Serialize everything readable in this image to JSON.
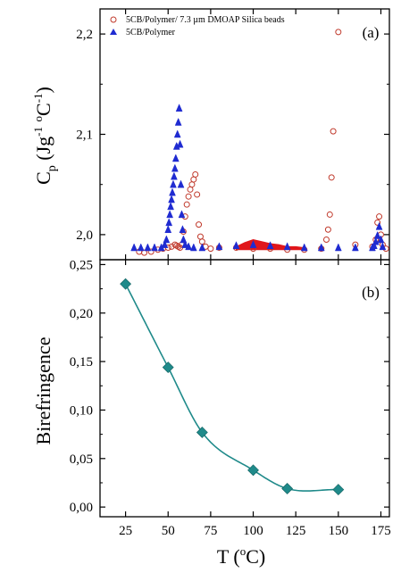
{
  "chart_data": [
    {
      "type": "scatter",
      "panel_label": "(a)",
      "ylabel": {
        "base": "C",
        "sub": "p",
        "unit_open": " (Jg",
        "sup1": "-1",
        "unit_mid": " ",
        "sup2": "o",
        "unit_close": "C",
        "sup3": "-1",
        "end": ")"
      },
      "xlim": [
        10,
        180
      ],
      "ylim": [
        1.975,
        2.225
      ],
      "yticks": [
        "2,0",
        "2,1",
        "2,2"
      ],
      "ytick_values": [
        2.0,
        2.1,
        2.2
      ],
      "legend_placement": "top-left",
      "series": [
        {
          "name": "5CB/Polymer/ 7.3 µm DMOAP Silica beads",
          "marker": "open-circle",
          "color": "#c0392b",
          "x": [
            33,
            36,
            40,
            44,
            47,
            50,
            52,
            54,
            55,
            56,
            57,
            58,
            59,
            60,
            61,
            62,
            63,
            64,
            65,
            66,
            67,
            68,
            69,
            70,
            72,
            75,
            80,
            90,
            100,
            110,
            120,
            130,
            140,
            143,
            144,
            145,
            146,
            147,
            150,
            160,
            170,
            172,
            173,
            174,
            175,
            176,
            178
          ],
          "y": [
            1.983,
            1.982,
            1.983,
            1.985,
            1.986,
            1.987,
            1.988,
            1.99,
            1.989,
            1.988,
            1.987,
            1.99,
            2.003,
            2.018,
            2.03,
            2.038,
            2.045,
            2.05,
            2.055,
            2.06,
            2.04,
            2.01,
            1.998,
            1.993,
            1.988,
            1.986,
            1.987,
            1.987,
            1.986,
            1.986,
            1.985,
            1.985,
            1.986,
            1.995,
            2.005,
            2.02,
            2.057,
            2.103,
            2.202,
            1.99,
            1.988,
            1.995,
            2.012,
            2.018,
            2.0,
            1.99,
            1.986
          ]
        },
        {
          "name": "5CB/Polymer",
          "marker": "filled-triangle",
          "color": "#1f2bd1",
          "x": [
            30,
            34,
            38,
            42,
            46,
            48,
            49,
            50,
            50.5,
            51,
            51.5,
            52,
            52.5,
            53,
            53.5,
            54,
            54.5,
            55,
            55.5,
            56,
            56.5,
            57,
            57.5,
            58,
            58.5,
            59,
            60,
            62,
            65,
            70,
            80,
            90,
            100,
            110,
            120,
            130,
            140,
            150,
            160,
            170,
            171,
            172,
            173,
            174,
            175,
            176
          ],
          "y": [
            1.987,
            1.987,
            1.987,
            1.987,
            1.987,
            1.99,
            1.995,
            2.005,
            2.012,
            2.02,
            2.028,
            2.035,
            2.042,
            2.05,
            2.058,
            2.066,
            2.076,
            2.088,
            2.1,
            2.112,
            2.126,
            2.09,
            2.05,
            2.02,
            2.005,
            1.995,
            1.99,
            1.988,
            1.987,
            1.987,
            1.988,
            1.989,
            1.99,
            1.989,
            1.988,
            1.987,
            1.987,
            1.987,
            1.987,
            1.987,
            1.989,
            1.993,
            1.999,
            2.008,
            1.995,
            1.988
          ]
        },
        {
          "name": "",
          "marker": "filled-area",
          "color": "#e0161b",
          "x": [
            90,
            95,
            100,
            105,
            110,
            115,
            120,
            125,
            130
          ],
          "y": [
            1.988,
            1.992,
            1.995,
            1.993,
            1.991,
            1.99,
            1.988,
            1.988,
            1.987
          ]
        }
      ]
    },
    {
      "type": "line",
      "panel_label": "(b)",
      "ylabel": "Birefringence",
      "xlabel": {
        "base": "T (",
        "sup": "o",
        "rest": "C)"
      },
      "xlim": [
        10,
        180
      ],
      "ylim": [
        -0.01,
        0.255
      ],
      "xticks": [
        "25",
        "50",
        "75",
        "100",
        "125",
        "150",
        "175"
      ],
      "xtick_values": [
        25,
        50,
        75,
        100,
        125,
        150,
        175
      ],
      "yticks": [
        "0,00",
        "0,05",
        "0,10",
        "0,15",
        "0,20",
        "0,25"
      ],
      "ytick_values": [
        0.0,
        0.05,
        0.1,
        0.15,
        0.2,
        0.25
      ],
      "series": [
        {
          "name": "",
          "marker": "diamond",
          "color": "#1f8a8a",
          "x": [
            25,
            50,
            70,
            100,
            120,
            150
          ],
          "y": [
            0.23,
            0.144,
            0.077,
            0.038,
            0.019,
            0.018
          ]
        }
      ]
    }
  ]
}
